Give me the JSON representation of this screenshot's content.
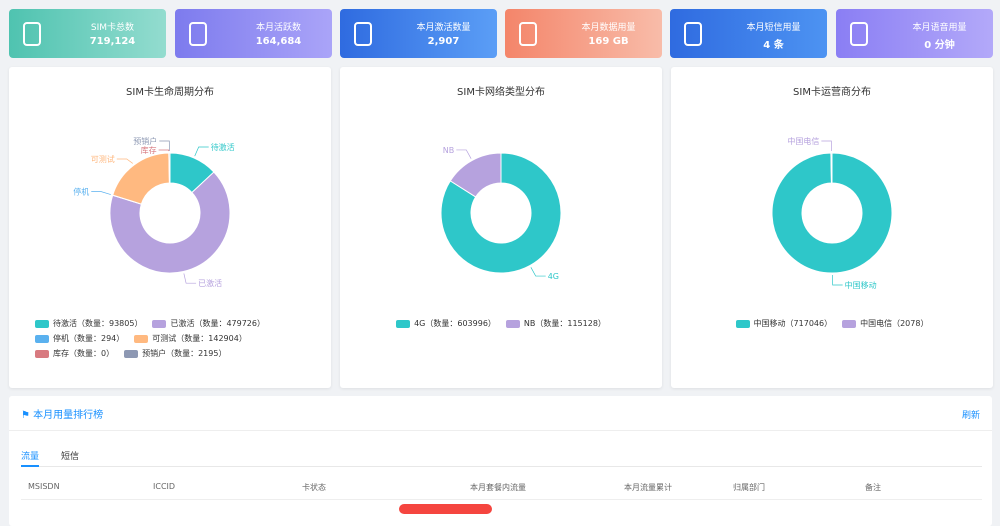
{
  "cards": [
    {
      "title": "SIM卡总数",
      "value": "719,124"
    },
    {
      "title": "本月活跃数",
      "value": "164,684"
    },
    {
      "title": "本月激活数量",
      "value": "2,907"
    },
    {
      "title": "本月数据用量",
      "value": "169 GB"
    },
    {
      "title": "本月短信用量",
      "value": "4 条"
    },
    {
      "title": "本月语音用量",
      "value": "0 分钟"
    }
  ],
  "chart_data": [
    {
      "type": "pie",
      "title": "SIM卡生命周期分布",
      "categories": [
        "待激活",
        "已激活",
        "停机",
        "可测试",
        "库存",
        "预销户"
      ],
      "values": [
        93805,
        479726,
        294,
        142904,
        0,
        2195
      ],
      "legend_labels": [
        "待激活（数量：93805）",
        "已激活（数量：479726）",
        "停机（数量：294）",
        "可测试（数量：142904）",
        "库存（数量：0）",
        "预销户（数量：2195）"
      ],
      "colors": [
        "#2ec7c9",
        "#b6a2de",
        "#5ab1ef",
        "#ffb980",
        "#d87a80",
        "#8d98b3"
      ]
    },
    {
      "type": "pie",
      "title": "SIM卡网络类型分布",
      "categories": [
        "4G",
        "NB"
      ],
      "values": [
        603996,
        115128
      ],
      "legend_labels": [
        "4G（数量：603996）",
        "NB（数量：115128）"
      ],
      "colors": [
        "#2ec7c9",
        "#b6a2de"
      ]
    },
    {
      "type": "pie",
      "title": "SIM卡运营商分布",
      "categories": [
        "中国移动",
        "中国电信"
      ],
      "values": [
        717046,
        2078
      ],
      "legend_labels": [
        "中国移动（717046）",
        "中国电信（2078）"
      ],
      "colors": [
        "#2ec7c9",
        "#b6a2de"
      ]
    }
  ],
  "table": {
    "title": "本月用量排行榜",
    "action": "刷新",
    "tabs": [
      "流量",
      "短信"
    ],
    "columns": [
      "MSISDN",
      "ICCID",
      "卡状态",
      "本月套餐内流量",
      "本月流量累计",
      "归属部门",
      "备注"
    ]
  }
}
